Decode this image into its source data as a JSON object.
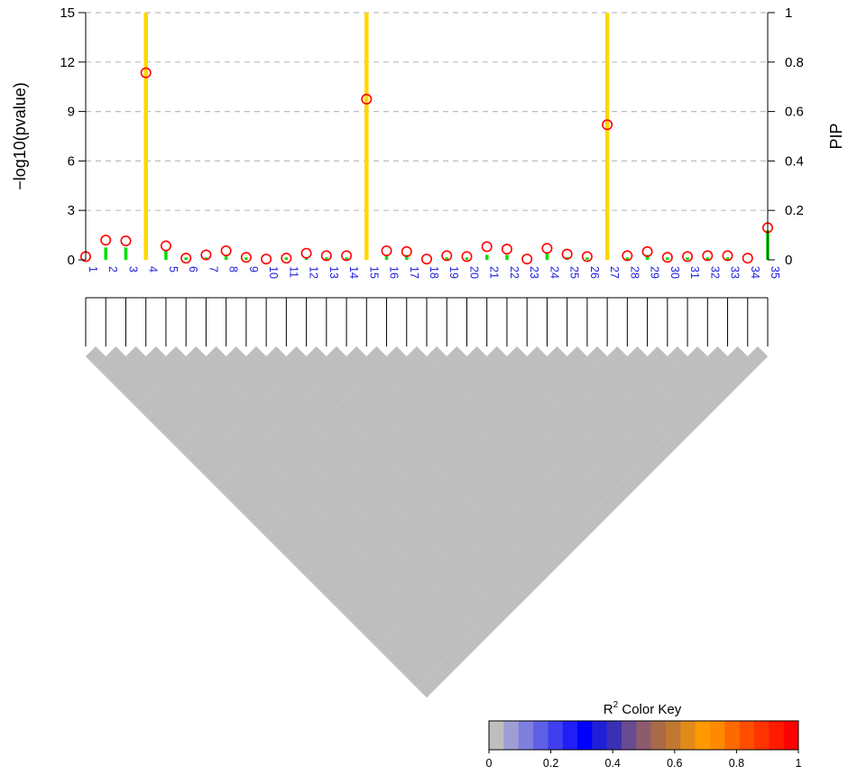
{
  "chart_data": {
    "type": "bar",
    "ylabel_left": "−log10(pvalue)",
    "ylabel_right": "PIP",
    "ylim_left": [
      0,
      15
    ],
    "ylim_right": [
      0,
      1
    ],
    "yticks_left": [
      "0",
      "3",
      "6",
      "9",
      "12",
      "15"
    ],
    "yticks_right": [
      "0",
      "0.2",
      "0.4",
      "0.6",
      "0.8",
      "1"
    ],
    "grid": "horizontal-dashed",
    "categories": [
      "1",
      "2",
      "3",
      "4",
      "5",
      "6",
      "7",
      "8",
      "9",
      "10",
      "11",
      "12",
      "13",
      "14",
      "15",
      "16",
      "17",
      "18",
      "19",
      "20",
      "21",
      "22",
      "23",
      "24",
      "25",
      "26",
      "27",
      "28",
      "29",
      "30",
      "31",
      "32",
      "33",
      "34",
      "35"
    ],
    "series": [
      {
        "kind": "bar",
        "axis": "right",
        "values": [
          0.0,
          0.05,
          0.05,
          1.0,
          0.04,
          0.01,
          0.01,
          0.02,
          0.01,
          0.0,
          0.01,
          0.01,
          0.01,
          0.01,
          1.0,
          0.02,
          0.02,
          0.0,
          0.01,
          0.01,
          0.02,
          0.02,
          0.0,
          0.03,
          0.01,
          0.01,
          1.0,
          0.01,
          0.02,
          0.01,
          0.01,
          0.01,
          0.01,
          0.0,
          0.12
        ]
      },
      {
        "kind": "point",
        "axis": "left",
        "values": [
          0.2,
          1.2,
          1.15,
          11.35,
          0.85,
          0.1,
          0.3,
          0.55,
          0.15,
          0.05,
          0.1,
          0.4,
          0.25,
          0.25,
          9.75,
          0.55,
          0.5,
          0.05,
          0.25,
          0.2,
          0.8,
          0.65,
          0.05,
          0.7,
          0.35,
          0.2,
          8.2,
          0.25,
          0.5,
          0.15,
          0.2,
          0.25,
          0.25,
          0.1,
          1.95
        ]
      }
    ],
    "colors": {
      "bar_high": "#ffd700",
      "bar_low": "#00e000",
      "point_stroke": "#ff0000",
      "ld_fill": "#bebebe",
      "snp_label": "#2020e0"
    },
    "ld_heatmap": {
      "fill": "#bebebe"
    },
    "color_key": {
      "title": "R",
      "title_sup": "2",
      "title_rest": " Color Key",
      "ticks": [
        "0",
        "0.2",
        "0.4",
        "0.6",
        "0.8",
        "1"
      ],
      "colors": [
        "#bebebe",
        "#9e9ed4",
        "#7f7fdf",
        "#5f5fe8",
        "#3f3fef",
        "#1f1ff6",
        "#0000ff",
        "#1f1fd8",
        "#3a30b4",
        "#6a4a90",
        "#8c5c6c",
        "#a86a48",
        "#c07830",
        "#e08a18",
        "#ff9900",
        "#ff8a00",
        "#ff6a00",
        "#ff4e00",
        "#ff3400",
        "#ff1a00",
        "#ff0000"
      ]
    }
  }
}
